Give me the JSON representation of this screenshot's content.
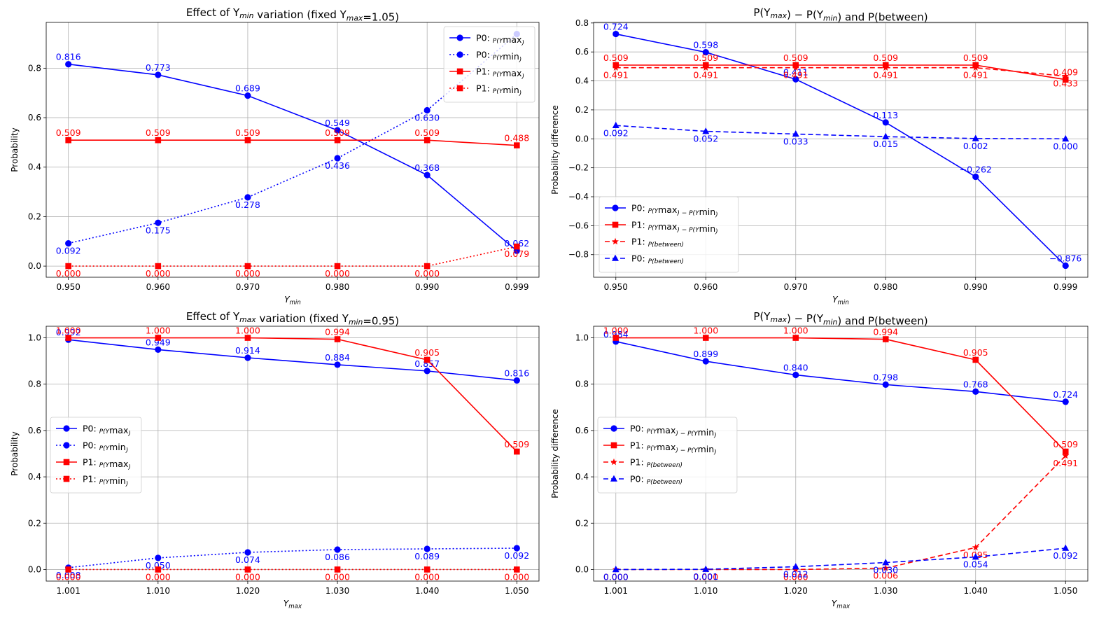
{
  "colors": {
    "p0": "#0000ff",
    "p1": "#ff0000"
  },
  "chart_data": [
    {
      "type": "line",
      "title_parts": [
        "Effect of Y",
        "min",
        " variation (fixed Y",
        "max",
        "=1.05)"
      ],
      "title": "Effect of Ymin variation (fixed Ymax=1.05)",
      "xlabel": "Ymin",
      "ylabel": "Probability",
      "x": [
        0.95,
        0.96,
        0.97,
        0.98,
        0.99,
        0.999
      ],
      "x_tick_labels": [
        "0.950",
        "0.960",
        "0.970",
        "0.980",
        "0.990",
        "0.999"
      ],
      "y_ticks": [
        0.0,
        0.2,
        0.4,
        0.6,
        0.8
      ],
      "y_tick_labels": [
        "0.0",
        "0.2",
        "0.4",
        "0.6",
        "0.8"
      ],
      "ylim": [
        -0.045,
        0.985
      ],
      "x_categorical": true,
      "grid": true,
      "legend_position": "top-right",
      "series": [
        {
          "name": "P0: P(Ymax)",
          "legend": [
            "P0: ",
            "P(Y",
            "max",
            ")"
          ],
          "color": "p0",
          "dash": "solid",
          "marker": "circle",
          "values": [
            0.816,
            0.773,
            0.689,
            0.549,
            0.368,
            0.062
          ],
          "labels": [
            "0.816",
            "0.773",
            "0.689",
            "0.549",
            "0.368",
            "0.062"
          ],
          "label_pos": "above"
        },
        {
          "name": "P0: P(Ymin)",
          "legend": [
            "P0: ",
            "P(Y",
            "min",
            ")"
          ],
          "color": "p0",
          "dash": "dotted",
          "marker": "circle",
          "values": [
            0.092,
            0.175,
            0.278,
            0.436,
            0.63,
            0.938
          ],
          "labels": [
            "0.092",
            "0.175",
            "0.278",
            "0.436",
            "0.630",
            ""
          ],
          "label_pos": "below"
        },
        {
          "name": "P1: P(Ymax)",
          "legend": [
            "P1: ",
            "P(Y",
            "max",
            ")"
          ],
          "color": "p1",
          "dash": "solid",
          "marker": "square",
          "values": [
            0.509,
            0.509,
            0.509,
            0.509,
            0.509,
            0.488
          ],
          "labels": [
            "0.509",
            "0.509",
            "0.509",
            "0.509",
            "0.509",
            "0.488"
          ],
          "label_pos": "above"
        },
        {
          "name": "P1: P(Ymin)",
          "legend": [
            "P1: ",
            "P(Y",
            "min",
            ")"
          ],
          "color": "p1",
          "dash": "dotted",
          "marker": "square",
          "values": [
            0.0,
            0.0,
            0.0,
            0.0,
            0.0,
            0.079
          ],
          "labels": [
            "0.000",
            "0.000",
            "0.000",
            "0.000",
            "0.000",
            "0.079"
          ],
          "label_pos": "below"
        }
      ]
    },
    {
      "type": "line",
      "title_parts": [
        "P(Y",
        "max",
        ") − P(Y",
        "min",
        ") and P(between)"
      ],
      "title": "P(Ymax) − P(Ymin) and P(between)",
      "xlabel": "Ymin",
      "ylabel": "Probability difference",
      "x": [
        0.95,
        0.96,
        0.97,
        0.98,
        0.99,
        0.999
      ],
      "x_tick_labels": [
        "0.950",
        "0.960",
        "0.970",
        "0.980",
        "0.990",
        "0.999"
      ],
      "y_ticks": [
        -0.8,
        -0.6,
        -0.4,
        -0.2,
        0.0,
        0.2,
        0.4,
        0.6,
        0.8
      ],
      "y_tick_labels": [
        "−0.8",
        "−0.6",
        "−0.4",
        "−0.2",
        "0.0",
        "0.2",
        "0.4",
        "0.6",
        "0.8"
      ],
      "ylim": [
        -0.956,
        0.804
      ],
      "x_categorical": true,
      "grid": true,
      "legend_position": "bottom-left",
      "series": [
        {
          "name": "P0: P(Ymax) − P(Ymin)",
          "legend": [
            "P0: ",
            "P(Y",
            "max",
            ") − P(Y",
            "min",
            ")"
          ],
          "color": "p0",
          "dash": "solid",
          "marker": "circle",
          "values": [
            0.724,
            0.598,
            0.411,
            0.113,
            -0.262,
            -0.876
          ],
          "labels": [
            "0.724",
            "0.598",
            "0.411",
            "0.113",
            "−0.262",
            "−0.876"
          ],
          "label_pos": "above"
        },
        {
          "name": "P1: P(Ymax) − P(Ymin)",
          "legend": [
            "P1: ",
            "P(Y",
            "max",
            ") − P(Y",
            "min",
            ")"
          ],
          "color": "p1",
          "dash": "solid",
          "marker": "square",
          "values": [
            0.509,
            0.509,
            0.509,
            0.509,
            0.509,
            0.409
          ],
          "labels": [
            "0.509",
            "0.509",
            "0.509",
            "0.509",
            "0.509",
            "0.409"
          ],
          "label_pos": "above"
        },
        {
          "name": "P1: P(between)",
          "legend": [
            "P1: ",
            "P(between)"
          ],
          "color": "p1",
          "dash": "dashed",
          "marker": "star",
          "values": [
            0.491,
            0.491,
            0.491,
            0.491,
            0.491,
            0.433
          ],
          "labels": [
            "0.491",
            "0.491",
            "0.491",
            "0.491",
            "0.491",
            "0.433"
          ],
          "label_pos": "below"
        },
        {
          "name": "P0: P(between)",
          "legend": [
            "P0: ",
            "P(between)"
          ],
          "color": "p0",
          "dash": "dashed",
          "marker": "triangle",
          "values": [
            0.092,
            0.052,
            0.033,
            0.015,
            0.002,
            0.0
          ],
          "labels": [
            "0.092",
            "0.052",
            "0.033",
            "0.015",
            "0.002",
            "0.000"
          ],
          "label_pos": "below"
        }
      ]
    },
    {
      "type": "line",
      "title_parts": [
        "Effect of Y",
        "max",
        " variation (fixed Y",
        "min",
        "=0.95)"
      ],
      "title": "Effect of Ymax variation (fixed Ymin=0.95)",
      "xlabel": "Ymax",
      "ylabel": "Probability",
      "x": [
        1.001,
        1.01,
        1.02,
        1.03,
        1.04,
        1.05
      ],
      "x_tick_labels": [
        "1.001",
        "1.010",
        "1.020",
        "1.030",
        "1.040",
        "1.050"
      ],
      "y_ticks": [
        0.0,
        0.2,
        0.4,
        0.6,
        0.8,
        1.0
      ],
      "y_tick_labels": [
        "0.0",
        "0.2",
        "0.4",
        "0.6",
        "0.8",
        "1.0"
      ],
      "ylim": [
        -0.05,
        1.05
      ],
      "x_categorical": true,
      "grid": true,
      "legend_position": "center-left",
      "series": [
        {
          "name": "P0: P(Ymax)",
          "legend": [
            "P0: ",
            "P(Y",
            "max",
            ")"
          ],
          "color": "p0",
          "dash": "solid",
          "marker": "circle",
          "values": [
            0.992,
            0.949,
            0.914,
            0.884,
            0.857,
            0.816
          ],
          "labels": [
            "0.992",
            "0.949",
            "0.914",
            "0.884",
            "0.857",
            "0.816"
          ],
          "label_pos": "above"
        },
        {
          "name": "P0: P(Ymin)",
          "legend": [
            "P0: ",
            "P(Y",
            "min",
            ")"
          ],
          "color": "p0",
          "dash": "dotted",
          "marker": "circle",
          "values": [
            0.008,
            0.05,
            0.074,
            0.086,
            0.089,
            0.092
          ],
          "labels": [
            "0.008",
            "0.050",
            "0.074",
            "0.086",
            "0.089",
            "0.092"
          ],
          "label_pos": "below"
        },
        {
          "name": "P1: P(Ymax)",
          "legend": [
            "P1: ",
            "P(Y",
            "max",
            ")"
          ],
          "color": "p1",
          "dash": "solid",
          "marker": "square",
          "values": [
            1.0,
            1.0,
            1.0,
            0.994,
            0.905,
            0.509
          ],
          "labels": [
            "1.000",
            "1.000",
            "1.000",
            "0.994",
            "0.905",
            "0.509"
          ],
          "label_pos": "above"
        },
        {
          "name": "P1: P(Ymin)",
          "legend": [
            "P1: ",
            "P(Y",
            "min",
            ")"
          ],
          "color": "p1",
          "dash": "dotted",
          "marker": "square",
          "values": [
            0.0,
            0.0,
            0.0,
            0.0,
            0.0,
            0.0
          ],
          "labels": [
            "0.000",
            "0.000",
            "0.000",
            "0.000",
            "0.000",
            "0.000"
          ],
          "label_pos": "below"
        }
      ]
    },
    {
      "type": "line",
      "title_parts": [
        "P(Y",
        "max",
        ") − P(Y",
        "min",
        ") and P(between)"
      ],
      "title": "P(Ymax) − P(Ymin) and P(between)",
      "xlabel": "Ymax",
      "ylabel": "Probability difference",
      "x": [
        1.001,
        1.01,
        1.02,
        1.03,
        1.04,
        1.05
      ],
      "x_tick_labels": [
        "1.001",
        "1.010",
        "1.020",
        "1.030",
        "1.040",
        "1.050"
      ],
      "y_ticks": [
        0.0,
        0.2,
        0.4,
        0.6,
        0.8,
        1.0
      ],
      "y_tick_labels": [
        "0.0",
        "0.2",
        "0.4",
        "0.6",
        "0.8",
        "1.0"
      ],
      "ylim": [
        -0.05,
        1.05
      ],
      "x_categorical": true,
      "grid": true,
      "legend_position": "center-left",
      "series": [
        {
          "name": "P0: P(Ymax) − P(Ymin)",
          "legend": [
            "P0: ",
            "P(Y",
            "max",
            ") − P(Y",
            "min",
            ")"
          ],
          "color": "p0",
          "dash": "solid",
          "marker": "circle",
          "values": [
            0.984,
            0.899,
            0.84,
            0.798,
            0.768,
            0.724
          ],
          "labels": [
            "0.984",
            "0.899",
            "0.840",
            "0.798",
            "0.768",
            "0.724"
          ],
          "label_pos": "above"
        },
        {
          "name": "P1: P(Ymax) − P(Ymin)",
          "legend": [
            "P1: ",
            "P(Y",
            "max",
            ") − P(Y",
            "min",
            ")"
          ],
          "color": "p1",
          "dash": "solid",
          "marker": "square",
          "values": [
            1.0,
            1.0,
            1.0,
            0.994,
            0.905,
            0.509
          ],
          "labels": [
            "1.000",
            "1.000",
            "1.000",
            "0.994",
            "0.905",
            "0.509"
          ],
          "label_pos": "above"
        },
        {
          "name": "P1: P(between)",
          "legend": [
            "P1: ",
            "P(between)"
          ],
          "color": "p1",
          "dash": "dashed",
          "marker": "star",
          "values": [
            0.0,
            0.0,
            0.0,
            0.006,
            0.095,
            0.491
          ],
          "labels": [
            "0.000",
            "0.000",
            "0.000",
            "0.006",
            "0.095",
            "0.491"
          ],
          "label_pos": "below"
        },
        {
          "name": "P0: P(between)",
          "legend": [
            "P0: ",
            "P(between)"
          ],
          "color": "p0",
          "dash": "dashed",
          "marker": "triangle",
          "values": [
            0.0,
            0.001,
            0.012,
            0.03,
            0.054,
            0.092
          ],
          "labels": [
            "0.000",
            "0.001",
            "0.012",
            "0.030",
            "0.054",
            "0.092"
          ],
          "label_pos": "below"
        }
      ]
    }
  ]
}
